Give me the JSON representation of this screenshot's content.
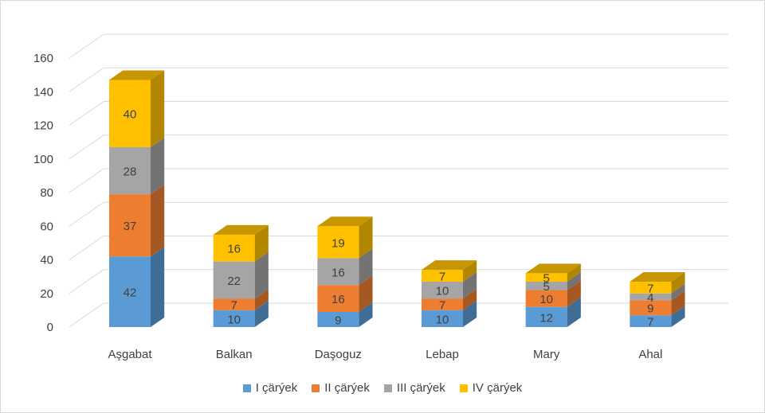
{
  "chart_data": {
    "type": "bar",
    "stacked": true,
    "three_d": true,
    "categories": [
      "Aşgabat",
      "Balkan",
      "Daşoguz",
      "Lebap",
      "Mary",
      "Ahal"
    ],
    "series": [
      {
        "name": "I çärýek",
        "values": [
          42,
          10,
          9,
          10,
          12,
          7
        ],
        "color": "#5b9bd5"
      },
      {
        "name": "II çärýek",
        "values": [
          37,
          7,
          16,
          7,
          10,
          9
        ],
        "color": "#ed7d31"
      },
      {
        "name": "III çärýek",
        "values": [
          28,
          22,
          16,
          10,
          5,
          4
        ],
        "color": "#a5a5a5"
      },
      {
        "name": "IV çärýek",
        "values": [
          40,
          16,
          19,
          7,
          5,
          7
        ],
        "color": "#ffc000"
      }
    ],
    "ylim": [
      0,
      160
    ],
    "yticks": [
      "0",
      "20",
      "40",
      "60",
      "80",
      "100",
      "120",
      "140",
      "160"
    ],
    "grid": true,
    "legend_position": "bottom"
  }
}
